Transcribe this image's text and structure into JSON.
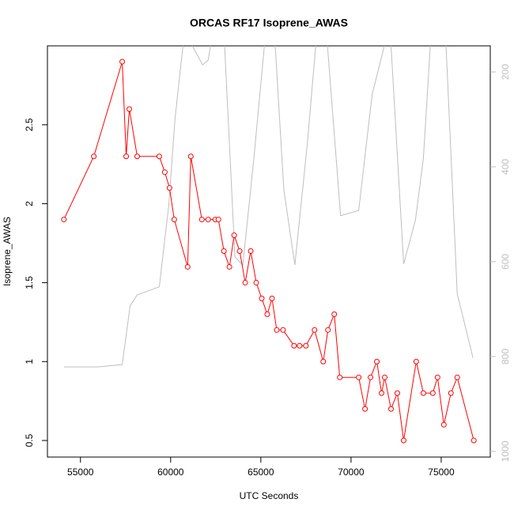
{
  "chart_data": {
    "type": "line",
    "title": "ORCAS RF17 Isoprene_AWAS",
    "x_label": "UTC Seconds",
    "y_label": "Isoprene_AWAS",
    "xlim": [
      53170,
      77720
    ],
    "xticks": [
      55000,
      60000,
      65000,
      70000,
      75000
    ],
    "ylim": [
      0.395,
      3.0
    ],
    "yticks": [
      0.5,
      1.0,
      1.5,
      2.0,
      2.5
    ],
    "y2lim": [
      1012,
      145
    ],
    "y2ticks": [
      200,
      400,
      600,
      800,
      1000
    ],
    "grid": false,
    "series": [
      {
        "color": "#ff0000",
        "markers": true,
        "x": [
          54082,
          55740,
          57316,
          57535,
          57709,
          58146,
          59370,
          59676,
          59938,
          60200,
          60943,
          61118,
          61730,
          62079,
          62473,
          62648,
          62953,
          63259,
          63522,
          63827,
          64133,
          64439,
          64745,
          65051,
          65357,
          65619,
          65881,
          66231,
          66843,
          67149,
          67498,
          67979,
          68460,
          68722,
          69071,
          69377,
          70426,
          70776,
          71082,
          71431,
          71693,
          71868,
          72218,
          72567,
          72917,
          73616,
          74010,
          74534,
          74796,
          75146,
          75539,
          75889,
          76806
        ],
        "values": [
          1.9,
          2.3,
          2.9,
          2.3,
          2.6,
          2.3,
          2.3,
          2.2,
          2.1,
          1.9,
          1.6,
          2.3,
          1.9,
          1.9,
          1.9,
          1.9,
          1.7,
          1.6,
          1.8,
          1.7,
          1.5,
          1.7,
          1.5,
          1.4,
          1.3,
          1.4,
          1.2,
          1.2,
          1.1,
          1.1,
          1.1,
          1.2,
          1.0,
          1.2,
          1.3,
          0.9,
          0.9,
          0.7,
          0.9,
          1.0,
          0.8,
          0.9,
          0.7,
          0.8,
          0.5,
          1.0,
          0.8,
          0.8,
          0.9,
          0.6,
          0.8,
          0.9,
          0.5
        ]
      },
      {
        "color": "#bebebe",
        "axis": "y2",
        "markers": false,
        "x": [
          54082,
          55961,
          57316,
          57753,
          58146,
          59370,
          59894,
          60244,
          60768,
          61774,
          62079,
          62342,
          62953,
          63565,
          64002,
          64614,
          65270,
          65750,
          66275,
          66886,
          67586,
          68110,
          68634,
          69421,
          70426,
          71169,
          72043,
          72174,
          72917,
          73573,
          74010,
          74447,
          75233,
          75889,
          76763
        ],
        "values": [
          822,
          822,
          817,
          693,
          670,
          653,
          482,
          298,
          115,
          185,
          175,
          115,
          115,
          590,
          607,
          382,
          115,
          115,
          448,
          607,
          348,
          115,
          115,
          503,
          492,
          248,
          115,
          115,
          605,
          512,
          382,
          115,
          115,
          668,
          803
        ]
      }
    ]
  }
}
